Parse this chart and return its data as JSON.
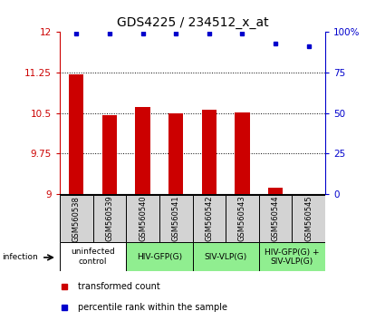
{
  "title": "GDS4225 / 234512_x_at",
  "samples": [
    "GSM560538",
    "GSM560539",
    "GSM560540",
    "GSM560541",
    "GSM560542",
    "GSM560543",
    "GSM560544",
    "GSM560545"
  ],
  "red_values": [
    11.22,
    10.46,
    10.62,
    10.49,
    10.56,
    10.51,
    9.12,
    9.0
  ],
  "blue_values": [
    99,
    99,
    99,
    99,
    99,
    99,
    93,
    91
  ],
  "ylim_left": [
    9.0,
    12.0
  ],
  "ylim_right": [
    0,
    100
  ],
  "yticks_left": [
    9.0,
    9.75,
    10.5,
    11.25,
    12.0
  ],
  "ytick_labels_left": [
    "9",
    "9.75",
    "10.5",
    "11.25",
    "12"
  ],
  "yticks_right": [
    0,
    25,
    50,
    75,
    100
  ],
  "ytick_labels_right": [
    "0",
    "25",
    "50",
    "75",
    "100%"
  ],
  "red_color": "#cc0000",
  "blue_color": "#0000cc",
  "bar_width": 0.45,
  "sample_bg_color": "#d3d3d3",
  "group_info": [
    {
      "start": 0,
      "end": 1,
      "label": "uninfected\ncontrol",
      "color": "#ffffff"
    },
    {
      "start": 2,
      "end": 3,
      "label": "HIV-GFP(G)",
      "color": "#90ee90"
    },
    {
      "start": 4,
      "end": 5,
      "label": "SIV-VLP(G)",
      "color": "#90ee90"
    },
    {
      "start": 6,
      "end": 7,
      "label": "HIV-GFP(G) +\nSIV-VLP(G)",
      "color": "#90ee90"
    }
  ],
  "legend_red_label": "transformed count",
  "legend_blue_label": "percentile rank within the sample",
  "infection_label": "infection",
  "title_fontsize": 10,
  "tick_fontsize": 7.5,
  "sample_fontsize": 6,
  "group_fontsize": 6.5,
  "legend_fontsize": 7
}
